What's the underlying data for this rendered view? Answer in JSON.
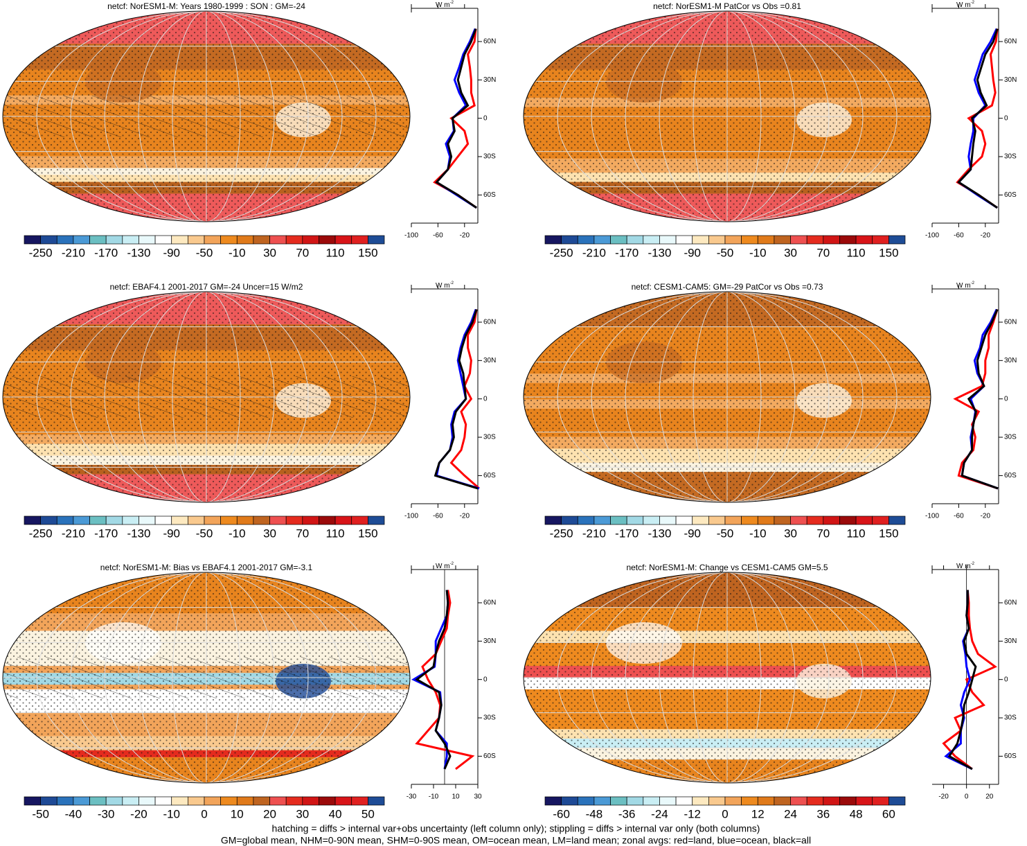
{
  "chart_data": [
    {
      "type": "map",
      "title": "netcf: NorESM1-M: Years 1980-1999 : SON : GM=-24",
      "colorbar": {
        "colors": [
          "#161660",
          "#1e4a96",
          "#2a72bb",
          "#4b9ad6",
          "#6bbfc2",
          "#a2d9e5",
          "#c9eef4",
          "#e9f9fb",
          "#ffffff",
          "#fde9c0",
          "#f9c98e",
          "#f2a45a",
          "#ee8a1f",
          "#e07a1a",
          "#bf6420",
          "#ee5050",
          "#e52b1e",
          "#d11515",
          "#9b0a0a",
          "#d81418",
          "#e02020",
          "#1e4c96"
        ],
        "labels": [
          -250,
          -210,
          -170,
          -130,
          -90,
          -50,
          -10,
          30,
          70,
          110,
          150
        ]
      },
      "zonal": {
        "unit": "W m",
        "unit_exp": "-2",
        "xlim": [
          -100,
          0
        ],
        "xticks": [
          -100,
          -60,
          -20
        ],
        "ylim": [
          -82,
          86
        ],
        "yticks": [
          {
            "value": 60,
            "label": "60N"
          },
          {
            "value": 30,
            "label": "30N"
          },
          0,
          {
            "value": -30,
            "label": "30S"
          },
          {
            "value": -60,
            "label": "60S"
          }
        ],
        "lat": [
          -70,
          -60,
          -50,
          -40,
          -30,
          -20,
          -10,
          0,
          10,
          20,
          30,
          40,
          50,
          60,
          70
        ],
        "series": [
          {
            "name": "land",
            "color": "#ff0000",
            "values": [
              -2,
              -30,
              -65,
              -45,
              -30,
              -15,
              -20,
              -40,
              -5,
              -10,
              -10,
              -12,
              -15,
              -5,
              -3
            ]
          },
          {
            "name": "ocean",
            "color": "#0000ff",
            "values": [
              -2,
              -32,
              -62,
              -45,
              -42,
              -48,
              -36,
              -38,
              -18,
              -28,
              -35,
              -28,
              -22,
              -12,
              -4
            ]
          },
          {
            "name": "all",
            "color": "#000000",
            "values": [
              -2,
              -30,
              -62,
              -45,
              -40,
              -45,
              -35,
              -38,
              -15,
              -25,
              -30,
              -25,
              -20,
              -10,
              -3
            ]
          }
        ]
      }
    },
    {
      "type": "map",
      "title": "netcf: NorESM1-M PatCor vs Obs =0.81",
      "colorbar": {
        "colors": [
          "#161660",
          "#1e4a96",
          "#2a72bb",
          "#4b9ad6",
          "#6bbfc2",
          "#a2d9e5",
          "#c9eef4",
          "#e9f9fb",
          "#ffffff",
          "#fde9c0",
          "#f9c98e",
          "#f2a45a",
          "#ee8a1f",
          "#e07a1a",
          "#bf6420",
          "#ee5050",
          "#e52b1e",
          "#d11515",
          "#9b0a0a",
          "#d81418",
          "#e02020",
          "#1e4c96"
        ],
        "labels": [
          -250,
          -210,
          -170,
          -130,
          -90,
          -50,
          -10,
          30,
          70,
          110,
          150
        ]
      },
      "zonal": {
        "unit": "W m",
        "unit_exp": "-2",
        "xlim": [
          -100,
          0
        ],
        "xticks": [
          -100,
          -60,
          -20
        ],
        "ylim": [
          -82,
          86
        ],
        "yticks": [
          {
            "value": 60,
            "label": "60N"
          },
          {
            "value": 30,
            "label": "30N"
          },
          0,
          {
            "value": -30,
            "label": "30S"
          },
          {
            "value": -60,
            "label": "60S"
          }
        ],
        "lat": [
          -70,
          -60,
          -50,
          -40,
          -30,
          -20,
          -10,
          0,
          10,
          20,
          30,
          40,
          50,
          60,
          70
        ],
        "series": [
          {
            "name": "land",
            "color": "#ff0000",
            "values": [
              -2,
              -30,
              -62,
              -45,
              -25,
              -20,
              -25,
              -45,
              -10,
              -5,
              -8,
              -10,
              -12,
              -4,
              -2
            ]
          },
          {
            "name": "ocean",
            "color": "#0000ff",
            "values": [
              -2,
              -32,
              -60,
              -42,
              -45,
              -42,
              -38,
              -38,
              -20,
              -30,
              -36,
              -30,
              -24,
              -12,
              -3
            ]
          },
          {
            "name": "all",
            "color": "#000000",
            "values": [
              -2,
              -30,
              -60,
              -42,
              -40,
              -38,
              -35,
              -40,
              -18,
              -27,
              -32,
              -26,
              -20,
              -8,
              -2
            ]
          }
        ]
      }
    },
    {
      "type": "map",
      "title": "netcf: EBAF4.1 2001-2017 GM=-24 Uncer=15 W/m2",
      "colorbar": {
        "colors": [
          "#161660",
          "#1e4a96",
          "#2a72bb",
          "#4b9ad6",
          "#6bbfc2",
          "#a2d9e5",
          "#c9eef4",
          "#e9f9fb",
          "#ffffff",
          "#fde9c0",
          "#f9c98e",
          "#f2a45a",
          "#ee8a1f",
          "#e07a1a",
          "#bf6420",
          "#ee5050",
          "#e52b1e",
          "#d11515",
          "#9b0a0a",
          "#d81418",
          "#e02020",
          "#1e4c96"
        ],
        "labels": [
          -250,
          -210,
          -170,
          -130,
          -90,
          -50,
          -10,
          30,
          70,
          110,
          150
        ]
      },
      "zonal": {
        "unit": "W m",
        "unit_exp": "-2",
        "xlim": [
          -100,
          0
        ],
        "xticks": [
          -100,
          -60,
          -20
        ],
        "ylim": [
          -82,
          86
        ],
        "yticks": [
          {
            "value": 60,
            "label": "60N"
          },
          {
            "value": 30,
            "label": "30N"
          },
          0,
          {
            "value": -30,
            "label": "30S"
          },
          {
            "value": -60,
            "label": "60S"
          }
        ],
        "lat": [
          -70,
          -60,
          -50,
          -40,
          -30,
          -20,
          -10,
          0,
          10,
          20,
          30,
          40,
          50,
          60,
          70
        ],
        "series": [
          {
            "name": "land",
            "color": "#ff0000",
            "values": [
              2,
              -20,
              -40,
              -25,
              -20,
              -18,
              -25,
              -10,
              -20,
              -12,
              -10,
              -15,
              -15,
              -5,
              -2
            ]
          },
          {
            "name": "ocean",
            "color": "#0000ff",
            "values": [
              2,
              -62,
              -58,
              -42,
              -38,
              -40,
              -35,
              -18,
              -22,
              -26,
              -30,
              -26,
              -20,
              -10,
              -3
            ]
          },
          {
            "name": "all",
            "color": "#000000",
            "values": [
              0,
              -64,
              -58,
              -42,
              -36,
              -38,
              -33,
              -18,
              -20,
              -22,
              -28,
              -24,
              -18,
              -8,
              -2
            ]
          }
        ]
      }
    },
    {
      "type": "map",
      "title": "netcf: CESM1-CAM5: GM=-29 PatCor vs Obs =0.73",
      "colorbar": {
        "colors": [
          "#161660",
          "#1e4a96",
          "#2a72bb",
          "#4b9ad6",
          "#6bbfc2",
          "#a2d9e5",
          "#c9eef4",
          "#e9f9fb",
          "#ffffff",
          "#fde9c0",
          "#f9c98e",
          "#f2a45a",
          "#ee8a1f",
          "#e07a1a",
          "#bf6420",
          "#ee5050",
          "#e52b1e",
          "#d11515",
          "#9b0a0a",
          "#d81418",
          "#e02020",
          "#1e4c96"
        ],
        "labels": [
          -250,
          -210,
          -170,
          -130,
          -90,
          -50,
          -10,
          30,
          70,
          110,
          150
        ]
      },
      "zonal": {
        "unit": "W m",
        "unit_exp": "-2",
        "xlim": [
          -100,
          0
        ],
        "xticks": [
          -100,
          -60,
          -20
        ],
        "ylim": [
          -82,
          86
        ],
        "yticks": [
          {
            "value": 60,
            "label": "60N"
          },
          {
            "value": 30,
            "label": "30N"
          },
          0,
          {
            "value": -30,
            "label": "30S"
          },
          {
            "value": -60,
            "label": "60S"
          }
        ],
        "lat": [
          -70,
          -60,
          -50,
          -40,
          -30,
          -20,
          -10,
          0,
          10,
          20,
          30,
          40,
          50,
          60,
          70
        ],
        "series": [
          {
            "name": "land",
            "color": "#ff0000",
            "values": [
              -1,
              -60,
              -55,
              -38,
              -35,
              -40,
              -30,
              -65,
              -25,
              -20,
              -20,
              -15,
              -15,
              -8,
              -2
            ]
          },
          {
            "name": "ocean",
            "color": "#0000ff",
            "values": [
              -1,
              -55,
              -52,
              -40,
              -42,
              -38,
              -35,
              -42,
              -22,
              -32,
              -36,
              -28,
              -24,
              -12,
              -3
            ]
          },
          {
            "name": "all",
            "color": "#000000",
            "values": [
              -1,
              -55,
              -52,
              -40,
              -40,
              -38,
              -34,
              -45,
              -22,
              -30,
              -32,
              -26,
              -20,
              -10,
              -2
            ]
          }
        ]
      }
    },
    {
      "type": "map",
      "title": "netcf: NorESM1-M: Bias vs EBAF4.1 2001-2017  GM=-3.1",
      "colorbar": {
        "colors": [
          "#161660",
          "#1e4a96",
          "#2a72bb",
          "#4b9ad6",
          "#6bbfc2",
          "#a2d9e5",
          "#c9eef4",
          "#e9f9fb",
          "#ffffff",
          "#fde9c0",
          "#f9c98e",
          "#f2a45a",
          "#ee8a1f",
          "#e07a1a",
          "#bf6420",
          "#ee5050",
          "#e52b1e",
          "#d11515",
          "#9b0a0a",
          "#d81418",
          "#e02020",
          "#1e4c96"
        ],
        "labels": [
          -50,
          -40,
          -30,
          -20,
          -10,
          0,
          10,
          20,
          30,
          40,
          50
        ]
      },
      "zonal": {
        "unit": "W m",
        "unit_exp": "-2",
        "xlim": [
          -30,
          30
        ],
        "xticks": [
          -30,
          -10,
          10,
          30
        ],
        "ylim": [
          -82,
          86
        ],
        "yticks": [
          {
            "value": 60,
            "label": "60N"
          },
          {
            "value": 30,
            "label": "30N"
          },
          0,
          {
            "value": -30,
            "label": "30S"
          },
          {
            "value": -60,
            "label": "60S"
          }
        ],
        "lat": [
          -70,
          -60,
          -50,
          -40,
          -30,
          -20,
          -10,
          0,
          10,
          20,
          30,
          40,
          50,
          60,
          70
        ],
        "series": [
          {
            "name": "land",
            "color": "#ff0000",
            "values": [
              10,
              25,
              -25,
              -15,
              -5,
              -4,
              -8,
              -15,
              -20,
              -8,
              -3,
              2,
              3,
              5,
              3
            ]
          },
          {
            "name": "ocean",
            "color": "#0000ff",
            "values": [
              0,
              2,
              2,
              -8,
              -5,
              -3,
              -4,
              -28,
              -9,
              -8,
              -8,
              -3,
              2,
              3,
              2
            ]
          },
          {
            "name": "all",
            "color": "#000000",
            "values": [
              0,
              5,
              0,
              -8,
              -5,
              -3,
              -5,
              -25,
              -10,
              -8,
              -5,
              0,
              2,
              3,
              2
            ]
          }
        ]
      }
    },
    {
      "type": "map",
      "title": "netcf: NorESM1-M: Change vs CESM1-CAM5 GM=5.5",
      "colorbar": {
        "colors": [
          "#161660",
          "#1e4a96",
          "#2a72bb",
          "#4b9ad6",
          "#6bbfc2",
          "#a2d9e5",
          "#c9eef4",
          "#e9f9fb",
          "#ffffff",
          "#fde9c0",
          "#f9c98e",
          "#f2a45a",
          "#ee8a1f",
          "#e07a1a",
          "#bf6420",
          "#ee5050",
          "#e52b1e",
          "#d11515",
          "#9b0a0a",
          "#d81418",
          "#e02020",
          "#1e4c96"
        ],
        "labels": [
          -60,
          -48,
          -36,
          -24,
          -12,
          0,
          12,
          24,
          36,
          48,
          60
        ]
      },
      "zonal": {
        "unit": "W m",
        "unit_exp": "-2",
        "xlim": [
          -30,
          28
        ],
        "xticks": [
          -20,
          0,
          20
        ],
        "ylim": [
          -82,
          86
        ],
        "yticks": [
          {
            "value": 60,
            "label": "60N"
          },
          {
            "value": 30,
            "label": "30N"
          },
          0,
          {
            "value": -30,
            "label": "30S"
          },
          {
            "value": -60,
            "label": "60S"
          }
        ],
        "lat": [
          -70,
          -60,
          -50,
          -40,
          -30,
          -20,
          -10,
          0,
          10,
          20,
          30,
          40,
          50,
          60,
          70
        ],
        "series": [
          {
            "name": "land",
            "color": "#ff0000",
            "values": [
              5,
              -10,
              -20,
              -5,
              -10,
              15,
              5,
              0,
              25,
              10,
              5,
              3,
              2,
              2,
              1
            ]
          },
          {
            "name": "ocean",
            "color": "#0000ff",
            "values": [
              5,
              -18,
              -5,
              -5,
              -2,
              -5,
              -2,
              3,
              0,
              -1,
              -3,
              2,
              0,
              1,
              1
            ]
          },
          {
            "name": "all",
            "color": "#000000",
            "values": [
              5,
              -15,
              -8,
              -5,
              -3,
              -2,
              2,
              5,
              8,
              0,
              -2,
              2,
              0,
              1,
              1
            ]
          }
        ]
      }
    }
  ],
  "footnote": [
    "hatching = diffs > internal var+obs uncertainty (left column only); stippling = diffs > internal var only (both columns)",
    "GM=global mean, NHM=0-90N mean, SHM=0-90S mean, OM=ocean mean, LM=land mean; zonal avgs: red=land, blue=ocean, black=all"
  ]
}
